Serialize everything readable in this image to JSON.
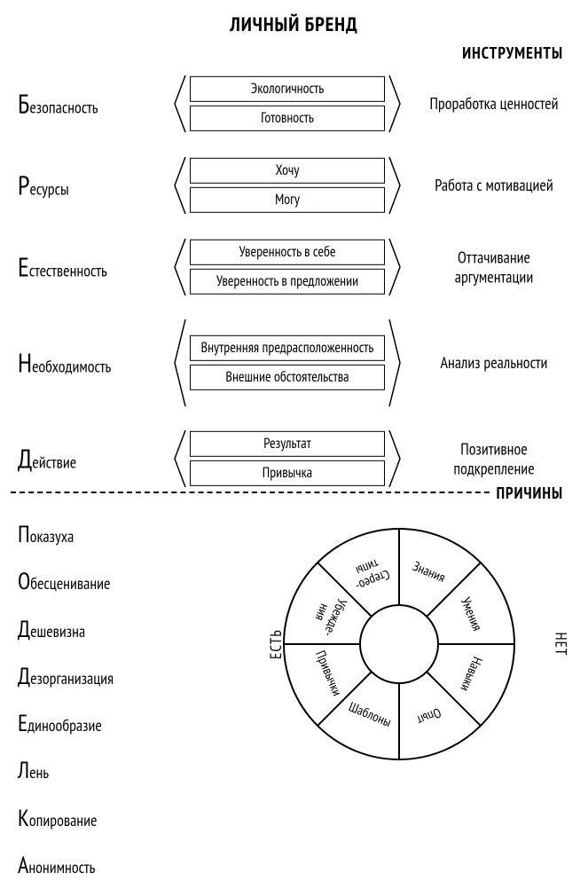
{
  "title": "ЛИЧНЫЙ БРЕНД",
  "tools_header": "ИНСТРУМЕНТЫ",
  "causes_header": "ПРИЧИНЫ",
  "rows": [
    {
      "cap": "Б",
      "rest": "езопасность",
      "box1": "Экологичность",
      "box2": "Готовность",
      "tool": "Проработка ценностей",
      "tall": false
    },
    {
      "cap": "Р",
      "rest": "есурсы",
      "box1": "Хочу",
      "box2": "Могу",
      "tool": "Работа с мотивацией",
      "tall": false
    },
    {
      "cap": "Е",
      "rest": "стественность",
      "box1": "Уверенность в себе",
      "box2": "Уверенность в предложении",
      "tool": "Оттачивание аргументации",
      "tall": false
    },
    {
      "cap": "Н",
      "rest": "еобходимость",
      "box1": "Внутренняя предрасположенность",
      "box2": "Внешние обстоятельства",
      "tool": "Анализ реальности",
      "tall": true
    },
    {
      "cap": "Д",
      "rest": "ействие",
      "box1": "Результат",
      "box2": "Привычка",
      "tool": "Позитивное подкрепление",
      "tall": false
    }
  ],
  "list2": [
    {
      "cap": "П",
      "rest": "оказуха"
    },
    {
      "cap": "О",
      "rest": "бесценивание"
    },
    {
      "cap": "Д",
      "rest": "ешевизна"
    },
    {
      "cap": "Д",
      "rest": "езорганизация"
    },
    {
      "cap": "Е",
      "rest": "динообразие"
    },
    {
      "cap": "Л",
      "rest": "ень"
    },
    {
      "cap": "К",
      "rest": "опирование"
    },
    {
      "cap": "А",
      "rest": "нонимность"
    }
  ],
  "wheel": {
    "outer_r": 130,
    "inner_r": 44,
    "stroke": "#000",
    "stroke_width": 2,
    "font_size": 15,
    "label_left": "ЕСТЬ",
    "label_right": "НЕТ",
    "segments": [
      {
        "lines": [
          "Знания"
        ]
      },
      {
        "lines": [
          "Умения"
        ]
      },
      {
        "lines": [
          "Навыки"
        ]
      },
      {
        "lines": [
          "Опыт"
        ]
      },
      {
        "lines": [
          "Шаблоны"
        ]
      },
      {
        "lines": [
          "Привычки"
        ]
      },
      {
        "lines": [
          "Убежде-",
          "ния"
        ]
      },
      {
        "lines": [
          "Стерео-",
          "типы"
        ]
      }
    ]
  },
  "style": {
    "title_fontsize": 22,
    "header_fontsize": 18,
    "angle_w": 14,
    "angle_h": 66,
    "angle_h_tall": 100
  }
}
